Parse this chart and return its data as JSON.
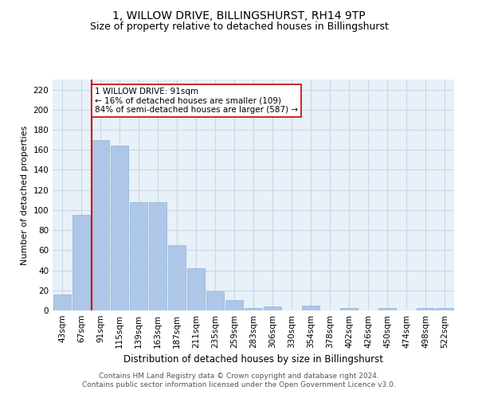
{
  "title": "1, WILLOW DRIVE, BILLINGSHURST, RH14 9TP",
  "subtitle": "Size of property relative to detached houses in Billingshurst",
  "xlabel": "Distribution of detached houses by size in Billingshurst",
  "ylabel": "Number of detached properties",
  "categories": [
    "43sqm",
    "67sqm",
    "91sqm",
    "115sqm",
    "139sqm",
    "163sqm",
    "187sqm",
    "211sqm",
    "235sqm",
    "259sqm",
    "283sqm",
    "306sqm",
    "330sqm",
    "354sqm",
    "378sqm",
    "402sqm",
    "426sqm",
    "450sqm",
    "474sqm",
    "498sqm",
    "522sqm"
  ],
  "values": [
    16,
    95,
    170,
    164,
    108,
    108,
    65,
    42,
    19,
    10,
    2,
    4,
    0,
    5,
    0,
    2,
    0,
    2,
    0,
    2,
    2
  ],
  "bar_color": "#aec6e8",
  "bar_edge_color": "#8ab4d8",
  "grid_color": "#c8d8e8",
  "bg_color": "#e8f0f8",
  "vline_x": 2,
  "vline_color": "#cc0000",
  "annotation_text": "1 WILLOW DRIVE: 91sqm\n← 16% of detached houses are smaller (109)\n84% of semi-detached houses are larger (587) →",
  "annotation_box_color": "#ffffff",
  "annotation_box_edge": "#cc0000",
  "footer": "Contains HM Land Registry data © Crown copyright and database right 2024.\nContains public sector information licensed under the Open Government Licence v3.0.",
  "ylim": [
    0,
    230
  ],
  "yticks": [
    0,
    20,
    40,
    60,
    80,
    100,
    120,
    140,
    160,
    180,
    200,
    220
  ],
  "title_fontsize": 10,
  "subtitle_fontsize": 9,
  "xlabel_fontsize": 8.5,
  "ylabel_fontsize": 8,
  "tick_fontsize": 7.5,
  "annotation_fontsize": 7.5,
  "footer_fontsize": 6.5
}
